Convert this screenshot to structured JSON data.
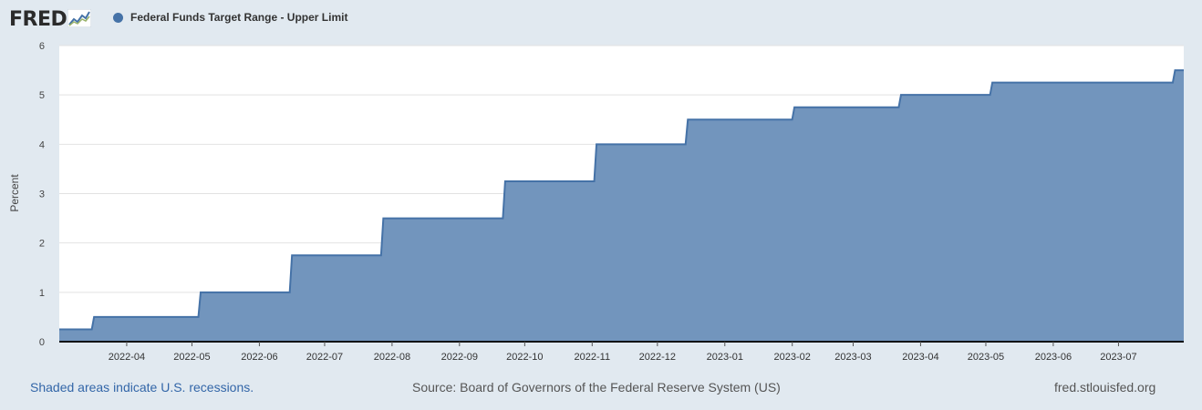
{
  "logo": {
    "text": "FRED",
    "icon": "chart-line-icon"
  },
  "legend": {
    "label": "Federal Funds Target Range - Upper Limit",
    "color": "#4572a7"
  },
  "footer": {
    "recessions_note": "Shaded areas indicate U.S. recessions.",
    "source": "Source: Board of Governors of the Federal Reserve System (US)",
    "site": "fred.stlouisfed.org"
  },
  "chart_data": {
    "type": "area",
    "title": "",
    "series": [
      {
        "name": "Federal Funds Target Range - Upper Limit",
        "color": "#4572a7",
        "fill": "#7295bd",
        "step_points": [
          {
            "date": "2022-03-01",
            "value": 0.25
          },
          {
            "date": "2022-03-17",
            "value": 0.5
          },
          {
            "date": "2022-05-05",
            "value": 1.0
          },
          {
            "date": "2022-06-16",
            "value": 1.75
          },
          {
            "date": "2022-07-28",
            "value": 2.5
          },
          {
            "date": "2022-09-22",
            "value": 3.25
          },
          {
            "date": "2022-11-03",
            "value": 4.0
          },
          {
            "date": "2022-12-15",
            "value": 4.5
          },
          {
            "date": "2023-02-02",
            "value": 4.75
          },
          {
            "date": "2023-03-23",
            "value": 5.0
          },
          {
            "date": "2023-05-04",
            "value": 5.25
          },
          {
            "date": "2023-07-27",
            "value": 5.5
          }
        ],
        "end_date": "2023-07-31"
      }
    ],
    "xlabel": "",
    "ylabel": "Percent",
    "ylim": [
      0,
      6
    ],
    "yticks": [
      0,
      1,
      2,
      3,
      4,
      5,
      6
    ],
    "xticks": [
      {
        "date": "2022-04-01",
        "label": "2022-04"
      },
      {
        "date": "2022-05-01",
        "label": "2022-05"
      },
      {
        "date": "2022-06-01",
        "label": "2022-06"
      },
      {
        "date": "2022-07-01",
        "label": "2022-07"
      },
      {
        "date": "2022-08-01",
        "label": "2022-08"
      },
      {
        "date": "2022-09-01",
        "label": "2022-09"
      },
      {
        "date": "2022-10-01",
        "label": "2022-10"
      },
      {
        "date": "2022-11-01",
        "label": "2022-11"
      },
      {
        "date": "2022-12-01",
        "label": "2022-12"
      },
      {
        "date": "2023-01-01",
        "label": "2023-01"
      },
      {
        "date": "2023-02-01",
        "label": "2023-02"
      },
      {
        "date": "2023-03-01",
        "label": "2023-03"
      },
      {
        "date": "2023-04-01",
        "label": "2023-04"
      },
      {
        "date": "2023-05-01",
        "label": "2023-05"
      },
      {
        "date": "2023-06-01",
        "label": "2023-06"
      },
      {
        "date": "2023-07-01",
        "label": "2023-07"
      }
    ],
    "xlim": [
      "2022-03-01",
      "2023-07-31"
    ],
    "grid": true
  }
}
